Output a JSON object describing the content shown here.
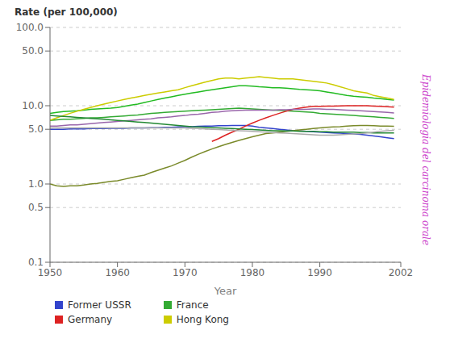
{
  "chart_data": {
    "type": "line",
    "title": "Rate (per 100,000)",
    "xlabel": "Year",
    "annotations": [
      {
        "text": "Epidemiologia del carcinoma orale",
        "color": "#cc44cc"
      }
    ],
    "log": "y",
    "grid": true,
    "legend": "bottom",
    "xlim": [
      1950,
      2002
    ],
    "xticks": [
      1950,
      1960,
      1970,
      1980,
      1990,
      2002
    ],
    "ylim": [
      0.1,
      100
    ],
    "yticks": [
      0.1,
      0.5,
      {
        "value": 1,
        "label": "1.0"
      },
      {
        "value": 5,
        "label": "5.0"
      },
      {
        "value": 10,
        "label": "10.0"
      },
      {
        "value": 50,
        "label": "50.0"
      },
      {
        "value": 100,
        "label": "100.0"
      }
    ],
    "x": [
      1950,
      1951,
      1952,
      1953,
      1954,
      1955,
      1956,
      1957,
      1958,
      1959,
      1960,
      1961,
      1962,
      1963,
      1964,
      1965,
      1966,
      1967,
      1968,
      1969,
      1970,
      1971,
      1972,
      1973,
      1974,
      1975,
      1976,
      1977,
      1978,
      1979,
      1980,
      1981,
      1982,
      1983,
      1984,
      1985,
      1986,
      1987,
      1988,
      1989,
      1990,
      1991,
      1992,
      1993,
      1994,
      1995,
      1996,
      1997,
      1998,
      1999,
      2000,
      2001
    ],
    "series": [
      {
        "name": "Former USSR",
        "color": "#3344cc",
        "values": [
          5.0,
          5.0,
          5.0,
          5.05,
          5.05,
          5.05,
          5.1,
          5.1,
          5.1,
          5.15,
          5.15,
          5.15,
          5.2,
          5.2,
          5.2,
          5.25,
          5.25,
          5.3,
          5.3,
          5.35,
          5.4,
          5.4,
          5.45,
          5.5,
          5.5,
          5.55,
          5.55,
          5.6,
          5.6,
          5.6,
          5.5,
          5.3,
          5.2,
          5.1,
          5.0,
          4.9,
          4.8,
          4.75,
          4.7,
          4.65,
          4.6,
          4.55,
          4.5,
          4.45,
          4.4,
          4.35,
          4.3,
          4.2,
          4.1,
          4.0,
          3.9,
          3.8
        ]
      },
      {
        "color": "#22bb22",
        "values": [
          8.0,
          8.2,
          8.4,
          8.5,
          8.6,
          8.8,
          9.0,
          9.1,
          9.2,
          9.3,
          9.5,
          9.8,
          10.2,
          10.5,
          11.0,
          11.5,
          12.0,
          12.5,
          13.0,
          13.5,
          14.0,
          14.5,
          15.0,
          15.5,
          16.0,
          16.5,
          17.0,
          17.5,
          18.0,
          18.0,
          17.8,
          17.5,
          17.3,
          17.0,
          17.0,
          16.8,
          16.5,
          16.2,
          16.0,
          15.8,
          15.5,
          15.0,
          14.5,
          14.0,
          13.5,
          13.2,
          13.0,
          12.8,
          12.5,
          12.3,
          12.0,
          11.8
        ]
      },
      {
        "name": "France",
        "color": "#33aa33",
        "values": [
          6.5,
          6.6,
          6.7,
          6.7,
          6.8,
          6.9,
          7.0,
          7.0,
          7.1,
          7.2,
          7.3,
          7.4,
          7.5,
          7.6,
          7.8,
          8.0,
          8.1,
          8.2,
          8.3,
          8.4,
          8.5,
          8.6,
          8.7,
          8.8,
          8.9,
          9.0,
          9.1,
          9.2,
          9.3,
          9.2,
          9.1,
          9.0,
          8.9,
          8.8,
          8.7,
          8.6,
          8.5,
          8.4,
          8.3,
          8.2,
          8.0,
          7.9,
          7.8,
          7.7,
          7.6,
          7.5,
          7.4,
          7.3,
          7.2,
          7.1,
          7.0,
          6.9
        ]
      },
      {
        "name": "Germany",
        "color": "#dd2222",
        "values": [
          null,
          null,
          null,
          null,
          null,
          null,
          null,
          null,
          null,
          null,
          null,
          null,
          null,
          null,
          null,
          null,
          null,
          null,
          null,
          null,
          null,
          null,
          null,
          null,
          3.5,
          3.8,
          4.2,
          4.6,
          5.0,
          5.5,
          6.0,
          6.5,
          7.0,
          7.5,
          8.0,
          8.5,
          9.0,
          9.3,
          9.6,
          9.8,
          9.85,
          9.9,
          9.9,
          9.95,
          10.0,
          10.0,
          10.0,
          10.0,
          9.9,
          9.8,
          9.7,
          9.6
        ]
      },
      {
        "name": "Hong Kong",
        "color": "#cccc00",
        "values": [
          6.5,
          7.0,
          7.5,
          8.0,
          8.5,
          9.0,
          9.5,
          10.0,
          10.5,
          11.0,
          11.5,
          12.0,
          12.5,
          13.0,
          13.5,
          14.0,
          14.5,
          15.0,
          15.5,
          16.0,
          17.0,
          18.0,
          19.0,
          20.0,
          21.0,
          22.0,
          22.5,
          22.5,
          22.0,
          22.5,
          23.0,
          23.5,
          23.0,
          22.5,
          22.0,
          22.0,
          22.0,
          21.5,
          21.0,
          20.5,
          20.0,
          19.5,
          18.5,
          17.5,
          16.5,
          15.5,
          15.0,
          14.5,
          13.5,
          13.0,
          12.5,
          12.0
        ]
      },
      {
        "color": "#7a8a2a",
        "values": [
          1.0,
          0.95,
          0.93,
          0.95,
          0.95,
          0.97,
          1.0,
          1.02,
          1.05,
          1.08,
          1.1,
          1.15,
          1.2,
          1.25,
          1.3,
          1.4,
          1.5,
          1.6,
          1.7,
          1.85,
          2.0,
          2.2,
          2.4,
          2.6,
          2.8,
          3.0,
          3.2,
          3.4,
          3.6,
          3.8,
          4.0,
          4.2,
          4.4,
          4.5,
          4.6,
          4.7,
          4.8,
          4.9,
          5.0,
          5.1,
          5.2,
          5.3,
          5.35,
          5.4,
          5.5,
          5.55,
          5.6,
          5.6,
          5.55,
          5.5,
          5.5,
          5.45
        ]
      },
      {
        "color": "#9966aa",
        "values": [
          5.5,
          5.5,
          5.6,
          5.7,
          5.7,
          5.8,
          5.9,
          6.0,
          6.1,
          6.2,
          6.3,
          6.4,
          6.5,
          6.6,
          6.7,
          6.8,
          7.0,
          7.1,
          7.2,
          7.4,
          7.5,
          7.7,
          7.8,
          8.0,
          8.2,
          8.3,
          8.5,
          8.6,
          8.7,
          8.8,
          8.8,
          8.8,
          8.8,
          8.8,
          8.9,
          8.9,
          9.0,
          9.0,
          9.0,
          9.1,
          9.1,
          9.0,
          9.0,
          8.9,
          8.8,
          8.7,
          8.6,
          8.5,
          8.4,
          8.3,
          8.2,
          8.1
        ]
      },
      {
        "color": "#228833",
        "values": [
          7.5,
          7.4,
          7.3,
          7.2,
          7.1,
          7.0,
          6.9,
          6.8,
          6.7,
          6.6,
          6.5,
          6.4,
          6.3,
          6.2,
          6.1,
          6.0,
          5.9,
          5.8,
          5.7,
          5.6,
          5.5,
          5.4,
          5.35,
          5.3,
          5.25,
          5.2,
          5.15,
          5.1,
          5.05,
          5.0,
          4.95,
          4.9,
          4.85,
          4.8,
          4.8,
          4.75,
          4.75,
          4.7,
          4.7,
          4.7,
          4.65,
          4.65,
          4.6,
          4.6,
          4.6,
          4.6,
          4.55,
          4.55,
          4.5,
          4.5,
          4.5,
          4.5
        ]
      },
      {
        "color": "#aaaaaa",
        "values": [
          5.2,
          5.2,
          5.2,
          5.2,
          5.2,
          5.2,
          5.2,
          5.2,
          5.2,
          5.2,
          5.2,
          5.2,
          5.2,
          5.2,
          5.2,
          5.2,
          5.2,
          5.2,
          5.2,
          5.2,
          5.2,
          5.15,
          5.1,
          5.05,
          5.0,
          4.95,
          4.9,
          4.85,
          4.8,
          4.75,
          4.7,
          4.65,
          4.6,
          4.55,
          4.5,
          4.45,
          4.4,
          4.35,
          4.3,
          4.25,
          4.2,
          4.2,
          4.2,
          4.25,
          4.3,
          4.35,
          4.4,
          4.5,
          4.6,
          4.7,
          4.8,
          4.85
        ]
      }
    ]
  }
}
